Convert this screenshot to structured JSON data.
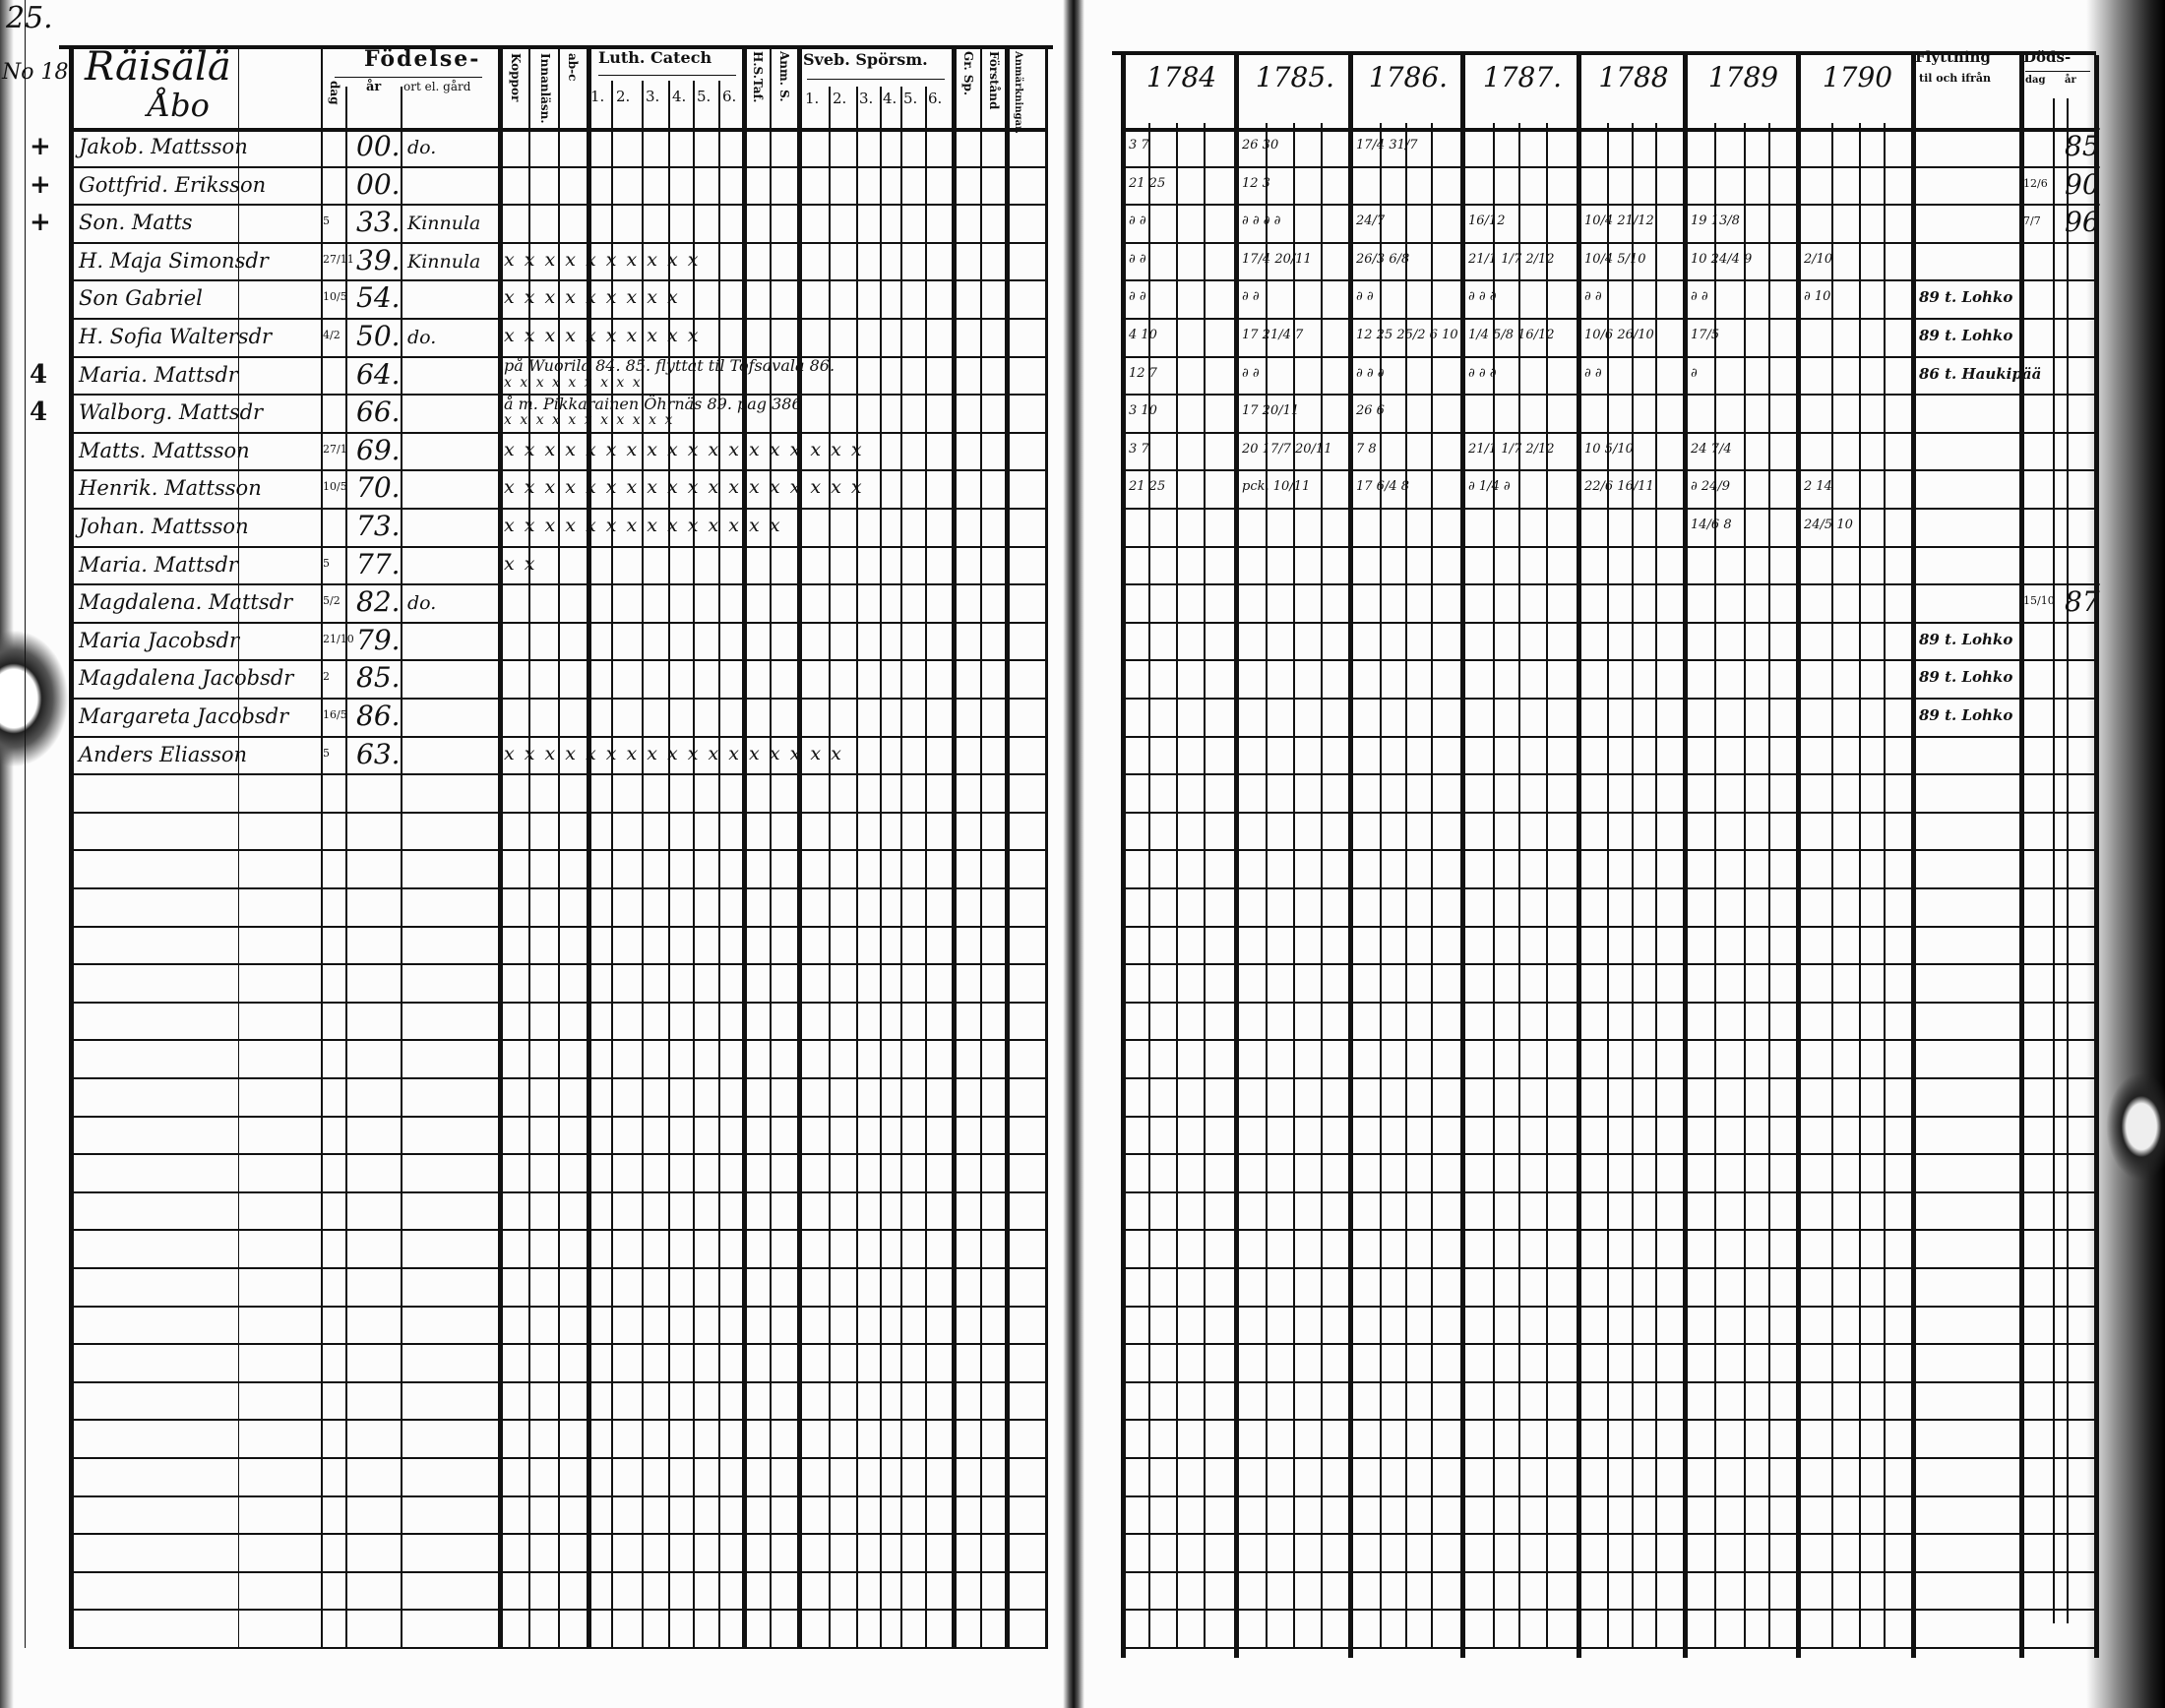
{
  "left_page": {
    "page_number": "25.",
    "household_number": "No 18",
    "farm_name": "Räisälä",
    "village": "Åbo",
    "headers": {
      "birth": "Födelse-",
      "day": "dag",
      "year": "år",
      "place": "ort el. gård",
      "smallpox": "Koppor",
      "reading": "Innanläsn.",
      "abc": "ab-c",
      "luth_catech": "Luth. Catech",
      "luth_cols": [
        "1.",
        "2.",
        "3.",
        "4.",
        "5.",
        "6."
      ],
      "hs_tafl": "H.S.Taf.",
      "anm": "Anm. S.",
      "sveb": "Sveb. Spörsm.",
      "sveb_cols": [
        "1.",
        "2.",
        "3.",
        "4.",
        "5.",
        "6."
      ],
      "gr_sp": "Gr. Sp.",
      "forstand": "Förstånd",
      "anmarkningar": "Anmärkningar."
    },
    "rows": [
      {
        "sign": "+",
        "name": "Jakob. Mattsson",
        "day": "",
        "year": "00.",
        "place": "do.",
        "marks": ""
      },
      {
        "sign": "+",
        "name": "Gottfrid. Eriksson",
        "day": "",
        "year": "00.",
        "place": "",
        "marks": ""
      },
      {
        "sign": "+",
        "name": "Son. Matts",
        "day": "5",
        "year": "33.",
        "place": "Kinnula",
        "marks": ""
      },
      {
        "sign": "",
        "name": "H. Maja Simonsdr",
        "day": "27/11",
        "year": "39.",
        "place": "Kinnula",
        "marks": "x x x x x x x x x x"
      },
      {
        "sign": "",
        "name": "Son Gabriel",
        "day": "10/5",
        "year": "54.",
        "place": "",
        "marks": "x x x x x x x x x"
      },
      {
        "sign": "",
        "name": "H. Sofia Waltersdr",
        "day": "4/2",
        "year": "50.",
        "place": "do.",
        "marks": "x x x x x x x x x x"
      },
      {
        "sign": "4",
        "name": "Maria. Mattsdr",
        "day": "",
        "year": "64.",
        "place": "",
        "marks": "x x x x x x x x x"
      },
      {
        "sign": "4",
        "name": "Walborg. Mattsdr",
        "day": "",
        "year": "66.",
        "place": "",
        "marks": "x x x x x x x x x x x"
      },
      {
        "sign": "",
        "name": "Matts. Mattsson",
        "day": "27/1",
        "year": "69.",
        "place": "",
        "marks": "x x x x x x x x x x x x x x x x x x"
      },
      {
        "sign": "",
        "name": "Henrik. Mattsson",
        "day": "10/5",
        "year": "70.",
        "place": "",
        "marks": "x x x x x x x x x x x x x x x x x x"
      },
      {
        "sign": "",
        "name": "Johan. Mattsson",
        "day": "",
        "year": "73.",
        "place": "",
        "marks": "x x x x x x x x x x x x x x"
      },
      {
        "sign": "",
        "name": "Maria. Mattsdr",
        "day": "5",
        "year": "77.",
        "place": "",
        "marks": "x x"
      },
      {
        "sign": "",
        "name": "Magdalena. Mattsdr",
        "day": "5/2",
        "year": "82.",
        "place": "do.",
        "marks": ""
      },
      {
        "sign": "",
        "name": "Maria Jacobsdr",
        "day": "21/10",
        "year": "79.",
        "place": "",
        "marks": ""
      },
      {
        "sign": "",
        "name": "Magdalena Jacobsdr",
        "day": "2",
        "year": "85.",
        "place": "",
        "marks": ""
      },
      {
        "sign": "",
        "name": "Margareta Jacobsdr",
        "day": "16/5",
        "year": "86.",
        "place": "",
        "marks": ""
      },
      {
        "sign": "",
        "name": "Anders Eliasson",
        "day": "5",
        "year": "63.",
        "place": "",
        "marks": "x x x x x x x x x x x x x x x x x"
      }
    ],
    "notes": [
      "på Wuorila 84. 85. flyttat til Tofsavala 86.",
      "å m. Pikkarainen Öhrnäs 89. pag 386"
    ]
  },
  "right_page": {
    "years": [
      "1784",
      "1785.",
      "1786.",
      "1787.",
      "1788",
      "1789",
      "1790"
    ],
    "moving_header": "Flyttning",
    "moving_sub": "til och ifrån",
    "death_header": "Döds-",
    "death_sub": [
      "dag",
      "år"
    ],
    "deaths": [
      {
        "row": 0,
        "day": "",
        "year": "85"
      },
      {
        "row": 1,
        "day": "12/6",
        "year": "90"
      },
      {
        "row": 2,
        "day": "7/7",
        "year": "96"
      },
      {
        "row": 12,
        "day": "15/10",
        "year": "87"
      }
    ],
    "moves": [
      {
        "row": 4,
        "text": "89 t. Lohko"
      },
      {
        "row": 5,
        "text": "89 t. Lohko"
      },
      {
        "row": 6,
        "text": "86 t. Haukipää"
      },
      {
        "row": 13,
        "text": "89 t. Lohko"
      },
      {
        "row": 14,
        "text": "89 t. Lohko"
      },
      {
        "row": 15,
        "text": "89 t. Lohko"
      }
    ],
    "communion_entries": [
      {
        "row": 0,
        "col": 0,
        "text": "3 7"
      },
      {
        "row": 0,
        "col": 1,
        "text": "26 30"
      },
      {
        "row": 0,
        "col": 2,
        "text": "17/4 31/7"
      },
      {
        "row": 1,
        "col": 0,
        "text": "21 25"
      },
      {
        "row": 1,
        "col": 1,
        "text": "12 3"
      },
      {
        "row": 2,
        "col": 0,
        "text": "∂ ∂"
      },
      {
        "row": 2,
        "col": 1,
        "text": "∂ ∂ ∂ ∂"
      },
      {
        "row": 2,
        "col": 2,
        "text": "24/7"
      },
      {
        "row": 2,
        "col": 3,
        "text": "16/12"
      },
      {
        "row": 2,
        "col": 4,
        "text": "10/4 21/12"
      },
      {
        "row": 2,
        "col": 5,
        "text": "19 13/8"
      },
      {
        "row": 3,
        "col": 0,
        "text": "∂ ∂"
      },
      {
        "row": 3,
        "col": 1,
        "text": "17/4 20/11"
      },
      {
        "row": 3,
        "col": 2,
        "text": "26/3 6/8"
      },
      {
        "row": 3,
        "col": 3,
        "text": "21/1 1/7 2/12"
      },
      {
        "row": 3,
        "col": 4,
        "text": "10/4 5/10"
      },
      {
        "row": 3,
        "col": 5,
        "text": "10 24/4 9"
      },
      {
        "row": 3,
        "col": 6,
        "text": "2/10"
      },
      {
        "row": 4,
        "col": 0,
        "text": "∂ ∂"
      },
      {
        "row": 4,
        "col": 1,
        "text": "∂ ∂"
      },
      {
        "row": 4,
        "col": 2,
        "text": "∂ ∂"
      },
      {
        "row": 4,
        "col": 3,
        "text": "∂ ∂ ∂"
      },
      {
        "row": 4,
        "col": 4,
        "text": "∂ ∂"
      },
      {
        "row": 4,
        "col": 5,
        "text": "∂ ∂"
      },
      {
        "row": 4,
        "col": 6,
        "text": "∂ 10"
      },
      {
        "row": 5,
        "col": 0,
        "text": "4 10"
      },
      {
        "row": 5,
        "col": 1,
        "text": "17 21/4 7"
      },
      {
        "row": 5,
        "col": 2,
        "text": "12 25 25/2 6 10"
      },
      {
        "row": 5,
        "col": 3,
        "text": "1/4 5/8 16/12"
      },
      {
        "row": 5,
        "col": 4,
        "text": "10/6 26/10"
      },
      {
        "row": 5,
        "col": 5,
        "text": "17/5"
      },
      {
        "row": 6,
        "col": 0,
        "text": "12 7"
      },
      {
        "row": 6,
        "col": 1,
        "text": "∂ ∂"
      },
      {
        "row": 6,
        "col": 2,
        "text": "∂ ∂ ∂"
      },
      {
        "row": 6,
        "col": 3,
        "text": "∂ ∂ ∂"
      },
      {
        "row": 6,
        "col": 4,
        "text": "∂ ∂"
      },
      {
        "row": 6,
        "col": 5,
        "text": "∂"
      },
      {
        "row": 7,
        "col": 0,
        "text": "3 10"
      },
      {
        "row": 7,
        "col": 1,
        "text": "17 20/11"
      },
      {
        "row": 7,
        "col": 2,
        "text": "26 6"
      },
      {
        "row": 8,
        "col": 0,
        "text": "3 7"
      },
      {
        "row": 8,
        "col": 1,
        "text": "20 17/7 20/11"
      },
      {
        "row": 8,
        "col": 2,
        "text": "7 8"
      },
      {
        "row": 8,
        "col": 3,
        "text": "21/1 1/7 2/12"
      },
      {
        "row": 8,
        "col": 4,
        "text": "10 5/10"
      },
      {
        "row": 8,
        "col": 5,
        "text": "24 7/4"
      },
      {
        "row": 9,
        "col": 0,
        "text": "21 25"
      },
      {
        "row": 9,
        "col": 1,
        "text": "pck. 10/11"
      },
      {
        "row": 9,
        "col": 2,
        "text": "17 6/4 8"
      },
      {
        "row": 9,
        "col": 3,
        "text": "∂ 1/4 ∂"
      },
      {
        "row": 9,
        "col": 4,
        "text": "22/6 16/11"
      },
      {
        "row": 9,
        "col": 5,
        "text": "∂ 24/9"
      },
      {
        "row": 9,
        "col": 6,
        "text": "2 14"
      },
      {
        "row": 10,
        "col": 5,
        "text": "14/6 8"
      },
      {
        "row": 10,
        "col": 6,
        "text": "24/5 10"
      }
    ]
  }
}
